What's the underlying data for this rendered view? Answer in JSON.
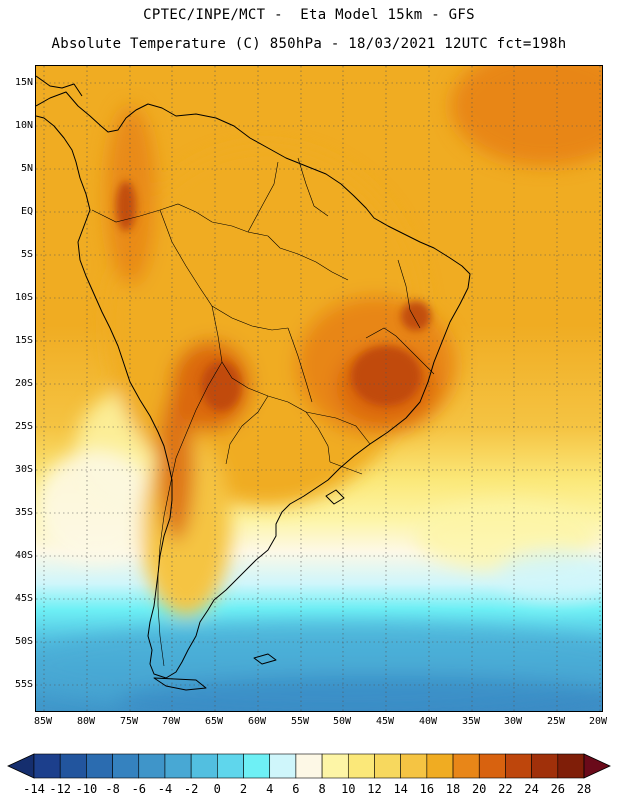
{
  "header": {
    "line1": "CPTEC/INPE/MCT -  Eta Model 15km - GFS",
    "line2": "Absolute Temperature (C) 850hPa - 18/03/2021 12UTC fct=198h"
  },
  "map": {
    "lon_range": [
      -86,
      -19
    ],
    "lat_range": [
      -58,
      17
    ],
    "lat_labels": [
      "15N",
      "10N",
      "5N",
      "EQ",
      "5S",
      "10S",
      "15S",
      "20S",
      "25S",
      "30S",
      "35S",
      "40S",
      "45S",
      "50S",
      "55S"
    ],
    "lon_labels": [
      "85W",
      "80W",
      "75W",
      "70W",
      "65W",
      "60W",
      "55W",
      "50W",
      "45W",
      "40W",
      "35W",
      "30W",
      "25W",
      "20W"
    ]
  },
  "colorbar": {
    "labels": [
      "-14",
      "-12",
      "-10",
      "-8",
      "-6",
      "-4",
      "-2",
      "0",
      "2",
      "4",
      "6",
      "8",
      "10",
      "12",
      "14",
      "16",
      "18",
      "20",
      "22",
      "24",
      "26",
      "28"
    ],
    "colors": [
      "#1c3f8c",
      "#22559e",
      "#2b6cb0",
      "#3582bf",
      "#3f95c9",
      "#48a8d4",
      "#52bfe0",
      "#5fd6ec",
      "#6ef0f5",
      "#cff6fb",
      "#fdf8e6",
      "#fdf5a6",
      "#fbe879",
      "#f7d85e",
      "#f5c443",
      "#f0ac22",
      "#e88618",
      "#d8620f",
      "#be460c",
      "#a0300a",
      "#7f1e08"
    ],
    "left_end_color": "#152e6e",
    "right_end_color": "#6a0a1a"
  }
}
